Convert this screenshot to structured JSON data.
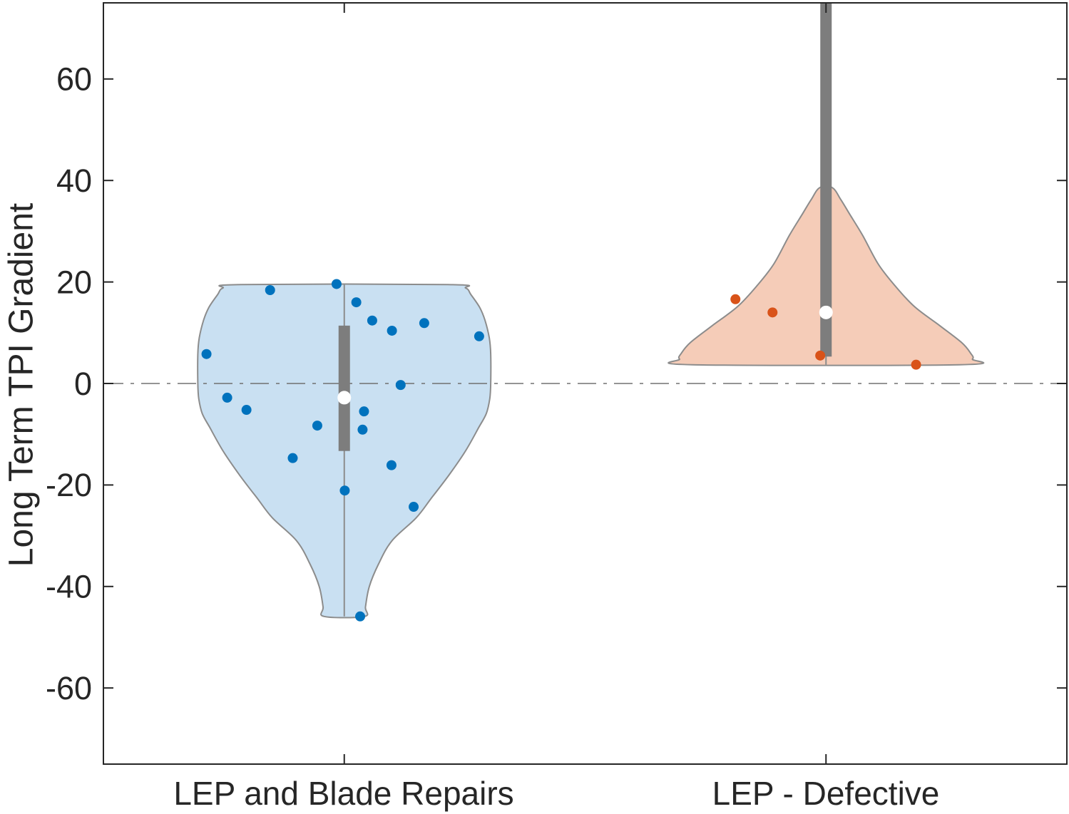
{
  "chart_data": {
    "type": "violin",
    "title": "",
    "xlabel": "",
    "ylabel": "Long Term TPI Gradient",
    "ylim": [
      -75,
      75
    ],
    "xlim": [
      0.5,
      2.5
    ],
    "yticks": [
      -60,
      -40,
      -20,
      0,
      20,
      40,
      60
    ],
    "grid": false,
    "legend": "none",
    "axis_color": "#262626",
    "box_color": "#7d7d7d",
    "whisker_color": "#8c8c8c",
    "median_marker_color": "#ffffff",
    "reference_line": {
      "value": 0,
      "style": "dash-dot",
      "color": "#707070"
    },
    "categories": [
      "LEP and Blade Repairs",
      "LEP - Defective"
    ],
    "series": [
      {
        "name": "LEP and Blade Repairs",
        "x": 1,
        "violin_fill": "#c9e0f2",
        "violin_edge": "#8c8c8c",
        "point_color": "#0072bd",
        "median": -2.8,
        "q1": -13.3,
        "q3": 11.4,
        "data_min": -45.9,
        "data_max": 19.5,
        "box_clipped_at_top": false,
        "density_profile": [
          [
            19.5,
            0.215
          ],
          [
            18.8,
            0.252
          ],
          [
            17.5,
            0.263
          ],
          [
            15.0,
            0.281
          ],
          [
            12.5,
            0.292
          ],
          [
            9.0,
            0.301
          ],
          [
            5.8,
            0.304
          ],
          [
            0.0,
            0.304
          ],
          [
            -3.0,
            0.302
          ],
          [
            -5.9,
            0.295
          ],
          [
            -8.7,
            0.279
          ],
          [
            -13.4,
            0.251
          ],
          [
            -18.1,
            0.217
          ],
          [
            -22.7,
            0.18
          ],
          [
            -26.5,
            0.149
          ],
          [
            -31.0,
            0.099
          ],
          [
            -35.6,
            0.071
          ],
          [
            -40.0,
            0.052
          ],
          [
            -44.0,
            0.044
          ],
          [
            -45.9,
            0.042
          ]
        ],
        "points": [
          [
            -0.016,
            19.6
          ],
          [
            -0.154,
            18.4
          ],
          [
            0.025,
            16.0
          ],
          [
            0.058,
            12.4
          ],
          [
            0.166,
            11.9
          ],
          [
            0.099,
            10.4
          ],
          [
            0.28,
            9.3
          ],
          [
            -0.286,
            5.8
          ],
          [
            0.117,
            -0.3
          ],
          [
            -0.243,
            -2.8
          ],
          [
            -0.203,
            -5.2
          ],
          [
            0.041,
            -5.5
          ],
          [
            -0.056,
            -8.3
          ],
          [
            0.038,
            -9.1
          ],
          [
            -0.107,
            -14.7
          ],
          [
            0.098,
            -16.1
          ],
          [
            0.001,
            -21.1
          ],
          [
            0.144,
            -24.3
          ],
          [
            0.033,
            -45.9
          ]
        ]
      },
      {
        "name": "LEP - Defective",
        "x": 2,
        "violin_fill": "#f5ccb8",
        "violin_edge": "#8c8c8c",
        "point_color": "#d95319",
        "median": 14.0,
        "q1": 5.3,
        "q3": null,
        "data_min": 3.7,
        "data_max": 38.6,
        "box_clipped_at_top": true,
        "density_profile": [
          [
            38.6,
            0.013
          ],
          [
            36.2,
            0.031
          ],
          [
            33.4,
            0.049
          ],
          [
            29.2,
            0.076
          ],
          [
            23.6,
            0.108
          ],
          [
            19.4,
            0.142
          ],
          [
            15.2,
            0.183
          ],
          [
            11.4,
            0.236
          ],
          [
            8.1,
            0.281
          ],
          [
            6.0,
            0.3
          ],
          [
            4.8,
            0.304
          ],
          [
            3.7,
            0.277
          ]
        ],
        "points": [
          [
            -0.188,
            16.6
          ],
          [
            -0.111,
            14.0
          ],
          [
            -0.012,
            5.5
          ],
          [
            0.187,
            3.7
          ]
        ]
      }
    ]
  }
}
